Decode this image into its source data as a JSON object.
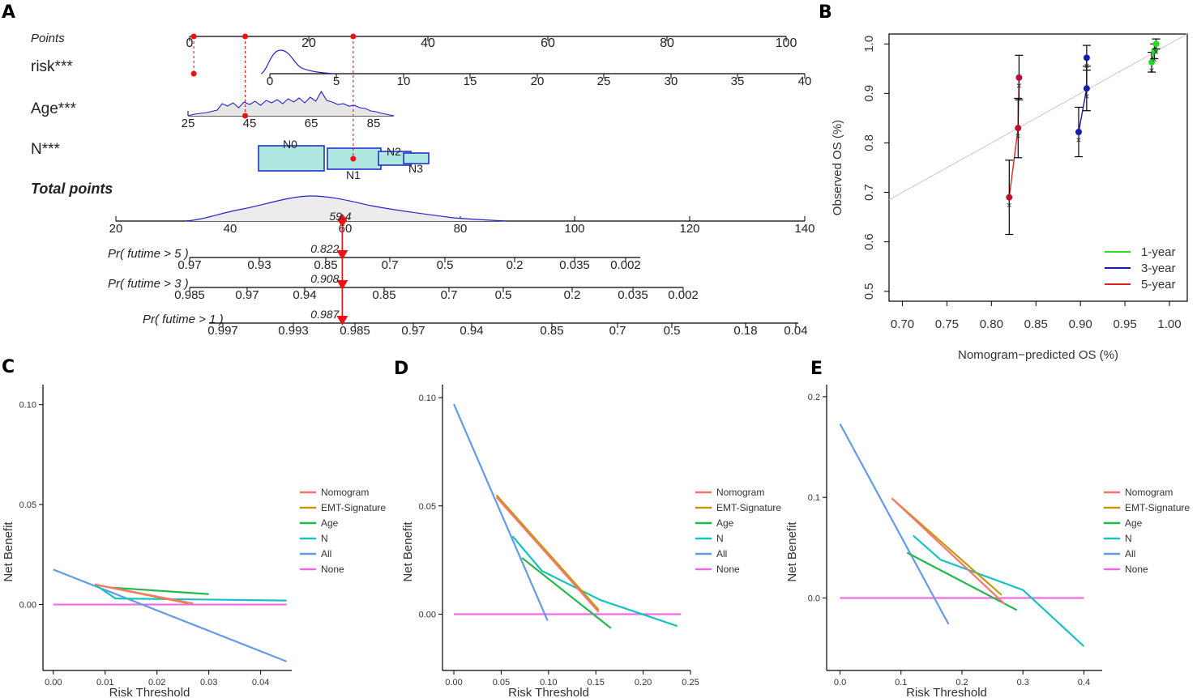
{
  "panel_labels": {
    "a": "A",
    "b": "B",
    "c": "C",
    "d": "D",
    "e": "E"
  },
  "chart_data": [
    {
      "panel": "A",
      "type": "nomogram",
      "rows": [
        {
          "name": "Points",
          "ticks": [
            "0",
            "20",
            "40",
            "60",
            "80",
            "100"
          ]
        },
        {
          "name": "risk***",
          "ticks": [
            "0",
            "5",
            "10",
            "15",
            "20",
            "25",
            "30",
            "35",
            "40"
          ]
        },
        {
          "name": "Age***",
          "ticks": [
            "25",
            "45",
            "65",
            "85"
          ]
        },
        {
          "name": "N***",
          "levels": [
            "N0",
            "N1",
            "N2",
            "N3"
          ]
        },
        {
          "name": "Total points",
          "ticks": [
            "20",
            "40",
            "60",
            "80",
            "100",
            "120",
            "140"
          ]
        },
        {
          "name": "Pr( futime > 5 )",
          "ticks": [
            "0.97",
            "0.93",
            "0.85",
            "0.7",
            "0.5",
            "0.2",
            "0.035",
            "0.002"
          ],
          "predicted": "0.822"
        },
        {
          "name": "Pr( futime > 3 )",
          "ticks": [
            "0.985",
            "0.97",
            "0.94",
            "0.85",
            "0.7",
            "0.5",
            "0.2",
            "0.035",
            "0.002"
          ],
          "predicted": "0.908"
        },
        {
          "name": "Pr( futime > 1 )",
          "ticks": [
            "0.997",
            "0.993",
            "0.985",
            "0.97",
            "0.94",
            "0.85",
            "0.7",
            "0.5",
            "0.18",
            "0.04"
          ],
          "predicted": "0.987"
        }
      ],
      "total_points_value": "59.4",
      "point_markers": [
        0.7,
        9.3,
        27.4
      ]
    },
    {
      "panel": "B",
      "type": "line",
      "title": "",
      "xlabel": "Nomogram−predicted OS (%)",
      "ylabel": "Observed OS (%)",
      "xlim": [
        0.685,
        1.02
      ],
      "ylim": [
        0.48,
        1.02
      ],
      "xticks": [
        "0.70",
        "0.75",
        "0.80",
        "0.85",
        "0.90",
        "0.95",
        "1.00"
      ],
      "yticks": [
        "0.5",
        "0.6",
        "0.7",
        "0.8",
        "0.9",
        "1.0"
      ],
      "legend": [
        "1-year",
        "3-year",
        "5-year"
      ],
      "legend_position": "bottom-right",
      "series": [
        {
          "name": "1-year",
          "color": "#22dd22",
          "x": [
            0.98,
            0.983,
            0.985
          ],
          "y": [
            0.963,
            0.985,
            1.0
          ],
          "err": [
            0.02,
            0.015,
            0.01
          ]
        },
        {
          "name": "3-year",
          "color": "#1a1aaa",
          "x": [
            0.898,
            0.907,
            0.907
          ],
          "y": [
            0.822,
            0.91,
            0.972
          ],
          "err": [
            0.05,
            0.045,
            0.025
          ]
        },
        {
          "name": "5-year",
          "color": "#dd2222",
          "x": [
            0.82,
            0.83,
            0.831
          ],
          "y": [
            0.69,
            0.83,
            0.932
          ],
          "err": [
            0.075,
            0.06,
            0.045
          ]
        }
      ]
    },
    {
      "panel": "C",
      "type": "line",
      "xlabel": "Risk Threshold",
      "ylabel": "Net Benefit",
      "xlim": [
        -0.002,
        0.046
      ],
      "ylim": [
        -0.033,
        0.11
      ],
      "xticks": [
        "0.00",
        "0.01",
        "0.02",
        "0.03",
        "0.04"
      ],
      "yticks": [
        "0.00",
        "0.05",
        "0.10"
      ],
      "legend": [
        "Nomogram",
        "EMT-Signature",
        "Age",
        "N",
        "All",
        "None"
      ],
      "legend_position": "right",
      "series": [
        {
          "name": "Nomogram",
          "color": "#f8766d",
          "x": [
            0.008,
            0.027
          ],
          "y": [
            0.01,
            0.0005
          ]
        },
        {
          "name": "EMT-Signature",
          "color": "#c09a0f",
          "x": [
            0.008,
            0.026
          ],
          "y": [
            0.01,
            0.0006
          ]
        },
        {
          "name": "Age",
          "color": "#22b84a",
          "x": [
            0.011,
            0.03
          ],
          "y": [
            0.0085,
            0.0052
          ]
        },
        {
          "name": "N",
          "color": "#17c2c0",
          "x": [
            0.008,
            0.012,
            0.045
          ],
          "y": [
            0.01,
            0.003,
            0.002
          ]
        },
        {
          "name": "All",
          "color": "#629be8",
          "x": [
            0.0,
            0.045
          ],
          "y": [
            0.0175,
            -0.0285
          ]
        },
        {
          "name": "None",
          "color": "#f06ae8",
          "x": [
            0.0,
            0.045
          ],
          "y": [
            0.0,
            0.0
          ]
        }
      ]
    },
    {
      "panel": "D",
      "type": "line",
      "xlabel": "Risk Threshold",
      "ylabel": "Net Benefit",
      "xlim": [
        -0.012,
        0.25
      ],
      "ylim": [
        -0.026,
        0.106
      ],
      "xticks": [
        "0.00",
        "0.05",
        "0.10",
        "0.15",
        "0.20",
        "0.25"
      ],
      "yticks": [
        "0.00",
        "0.05",
        "0.10"
      ],
      "legend": [
        "Nomogram",
        "EMT-Signature",
        "Age",
        "N",
        "All",
        "None"
      ],
      "legend_position": "right",
      "series": [
        {
          "name": "Nomogram",
          "color": "#f8766d",
          "x": [
            0.045,
            0.153
          ],
          "y": [
            0.054,
            0.001
          ]
        },
        {
          "name": "EMT-Signature",
          "color": "#c09a0f",
          "x": [
            0.045,
            0.153
          ],
          "y": [
            0.055,
            0.002
          ]
        },
        {
          "name": "Age",
          "color": "#22b84a",
          "x": [
            0.072,
            0.166
          ],
          "y": [
            0.026,
            -0.0065
          ]
        },
        {
          "name": "N",
          "color": "#17c2c0",
          "x": [
            0.062,
            0.093,
            0.155,
            0.236
          ],
          "y": [
            0.036,
            0.02,
            0.0065,
            -0.0055
          ]
        },
        {
          "name": "All",
          "color": "#629be8",
          "x": [
            0.0,
            0.099
          ],
          "y": [
            0.097,
            -0.003
          ]
        },
        {
          "name": "None",
          "color": "#f06ae8",
          "x": [
            0.0,
            0.24
          ],
          "y": [
            0.0,
            0.0
          ]
        }
      ]
    },
    {
      "panel": "E",
      "type": "line",
      "xlabel": "Risk Threshold",
      "ylabel": "Net Benefit",
      "xlim": [
        -0.022,
        0.43
      ],
      "ylim": [
        -0.072,
        0.212
      ],
      "xticks": [
        "0.0",
        "0.1",
        "0.2",
        "0.3",
        "0.4"
      ],
      "yticks": [
        "0.0",
        "0.1",
        "0.2"
      ],
      "legend": [
        "Nomogram",
        "EMT-Signature",
        "Age",
        "N",
        "All",
        "None"
      ],
      "legend_position": "right",
      "series": [
        {
          "name": "Nomogram",
          "color": "#f8766d",
          "x": [
            0.085,
            0.27
          ],
          "y": [
            0.099,
            -0.006
          ]
        },
        {
          "name": "EMT-Signature",
          "color": "#c09a0f",
          "x": [
            0.085,
            0.265
          ],
          "y": [
            0.099,
            0.003
          ]
        },
        {
          "name": "Age",
          "color": "#22b84a",
          "x": [
            0.11,
            0.29
          ],
          "y": [
            0.045,
            -0.012
          ]
        },
        {
          "name": "N",
          "color": "#17c2c0",
          "x": [
            0.12,
            0.165,
            0.3,
            0.4
          ],
          "y": [
            0.062,
            0.038,
            0.008,
            -0.048
          ]
        },
        {
          "name": "All",
          "color": "#629be8",
          "x": [
            0.0,
            0.178
          ],
          "y": [
            0.173,
            -0.026
          ]
        },
        {
          "name": "None",
          "color": "#f06ae8",
          "x": [
            0.0,
            0.4
          ],
          "y": [
            0.0,
            0.0
          ]
        }
      ]
    }
  ]
}
